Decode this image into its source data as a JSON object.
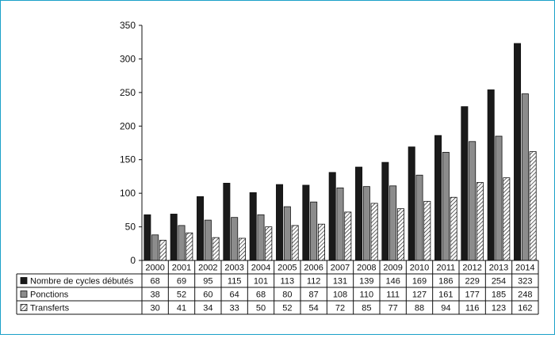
{
  "chart_data": {
    "type": "bar",
    "title": "",
    "xlabel": "",
    "ylabel": "",
    "ylim": [
      0,
      350
    ],
    "yticks": [
      0,
      50,
      100,
      150,
      200,
      250,
      300,
      350
    ],
    "grid": false,
    "legend": "data table below the chart, series names in the first column",
    "categories": [
      "2000",
      "2001",
      "2002",
      "2003",
      "2004",
      "2005",
      "2006",
      "2007",
      "2008",
      "2009",
      "2010",
      "2011",
      "2012",
      "2013",
      "2014"
    ],
    "series": [
      {
        "name": "Nombre de cycles débutés",
        "color": "#1a1a1a",
        "pattern": "solid",
        "values": [
          68,
          69,
          95,
          115,
          101,
          113,
          112,
          131,
          139,
          146,
          169,
          186,
          229,
          254,
          323
        ]
      },
      {
        "name": "Ponctions",
        "color": "#8c8c8c",
        "pattern": "solid",
        "values": [
          38,
          52,
          60,
          64,
          68,
          80,
          87,
          108,
          110,
          111,
          127,
          161,
          177,
          185,
          248
        ]
      },
      {
        "name": "Transferts",
        "color": "#ffffff",
        "pattern": "diagonal-hatch",
        "values": [
          30,
          41,
          34,
          33,
          50,
          52,
          54,
          72,
          85,
          77,
          88,
          94,
          116,
          123,
          162
        ]
      }
    ]
  }
}
